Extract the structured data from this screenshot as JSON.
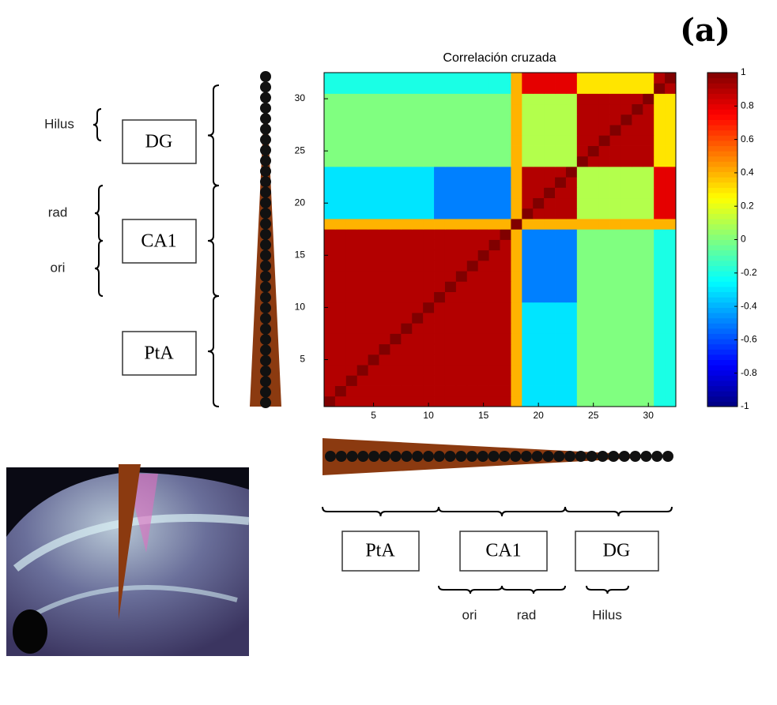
{
  "label": "(a)",
  "chart_data": {
    "type": "heatmap",
    "title": "Correlación cruzada",
    "z": [
      [
        1,
        0.9,
        0.9,
        0.9,
        0.9,
        0.9,
        0.9,
        0.9,
        0.9,
        0.9,
        0.9,
        0.9,
        0.9,
        0.9,
        0.9,
        0.9,
        0.9,
        0.4,
        -0.3,
        -0.3,
        -0.3,
        -0.3,
        -0.3,
        0,
        0,
        0,
        0,
        0,
        0,
        0,
        -0.2,
        -0.2
      ],
      [
        0.9,
        1,
        0.9,
        0.9,
        0.9,
        0.9,
        0.9,
        0.9,
        0.9,
        0.9,
        0.9,
        0.9,
        0.9,
        0.9,
        0.9,
        0.9,
        0.9,
        0.4,
        -0.3,
        -0.3,
        -0.3,
        -0.3,
        -0.3,
        0,
        0,
        0,
        0,
        0,
        0,
        0,
        -0.2,
        -0.2
      ],
      [
        0.9,
        0.9,
        1,
        0.9,
        0.9,
        0.9,
        0.9,
        0.9,
        0.9,
        0.9,
        0.9,
        0.9,
        0.9,
        0.9,
        0.9,
        0.9,
        0.9,
        0.4,
        -0.3,
        -0.3,
        -0.3,
        -0.3,
        -0.3,
        0,
        0,
        0,
        0,
        0,
        0,
        0,
        -0.2,
        -0.2
      ],
      [
        0.9,
        0.9,
        0.9,
        1,
        0.9,
        0.9,
        0.9,
        0.9,
        0.9,
        0.9,
        0.9,
        0.9,
        0.9,
        0.9,
        0.9,
        0.9,
        0.9,
        0.4,
        -0.3,
        -0.3,
        -0.3,
        -0.3,
        -0.3,
        0,
        0,
        0,
        0,
        0,
        0,
        0,
        -0.2,
        -0.2
      ],
      [
        0.9,
        0.9,
        0.9,
        0.9,
        1,
        0.9,
        0.9,
        0.9,
        0.9,
        0.9,
        0.9,
        0.9,
        0.9,
        0.9,
        0.9,
        0.9,
        0.9,
        0.4,
        -0.3,
        -0.3,
        -0.3,
        -0.3,
        -0.3,
        0,
        0,
        0,
        0,
        0,
        0,
        0,
        -0.2,
        -0.2
      ],
      [
        0.9,
        0.9,
        0.9,
        0.9,
        0.9,
        1,
        0.9,
        0.9,
        0.9,
        0.9,
        0.9,
        0.9,
        0.9,
        0.9,
        0.9,
        0.9,
        0.9,
        0.4,
        -0.3,
        -0.3,
        -0.3,
        -0.3,
        -0.3,
        0,
        0,
        0,
        0,
        0,
        0,
        0,
        -0.2,
        -0.2
      ],
      [
        0.9,
        0.9,
        0.9,
        0.9,
        0.9,
        0.9,
        1,
        0.9,
        0.9,
        0.9,
        0.9,
        0.9,
        0.9,
        0.9,
        0.9,
        0.9,
        0.9,
        0.4,
        -0.3,
        -0.3,
        -0.3,
        -0.3,
        -0.3,
        0,
        0,
        0,
        0,
        0,
        0,
        0,
        -0.2,
        -0.2
      ],
      [
        0.9,
        0.9,
        0.9,
        0.9,
        0.9,
        0.9,
        0.9,
        1,
        0.9,
        0.9,
        0.9,
        0.9,
        0.9,
        0.9,
        0.9,
        0.9,
        0.9,
        0.4,
        -0.3,
        -0.3,
        -0.3,
        -0.3,
        -0.3,
        0,
        0,
        0,
        0,
        0,
        0,
        0,
        -0.2,
        -0.2
      ],
      [
        0.9,
        0.9,
        0.9,
        0.9,
        0.9,
        0.9,
        0.9,
        0.9,
        1,
        0.9,
        0.9,
        0.9,
        0.9,
        0.9,
        0.9,
        0.9,
        0.9,
        0.4,
        -0.3,
        -0.3,
        -0.3,
        -0.3,
        -0.3,
        0,
        0,
        0,
        0,
        0,
        0,
        0,
        -0.2,
        -0.2
      ],
      [
        0.9,
        0.9,
        0.9,
        0.9,
        0.9,
        0.9,
        0.9,
        0.9,
        0.9,
        1,
        0.9,
        0.9,
        0.9,
        0.9,
        0.9,
        0.9,
        0.9,
        0.4,
        -0.3,
        -0.3,
        -0.3,
        -0.3,
        -0.3,
        0,
        0,
        0,
        0,
        0,
        0,
        0,
        -0.2,
        -0.2
      ],
      [
        0.9,
        0.9,
        0.9,
        0.9,
        0.9,
        0.9,
        0.9,
        0.9,
        0.9,
        0.9,
        1,
        0.9,
        0.9,
        0.9,
        0.9,
        0.9,
        0.9,
        0.4,
        -0.5,
        -0.5,
        -0.5,
        -0.5,
        -0.5,
        0,
        0,
        0,
        0,
        0,
        0,
        0,
        -0.2,
        -0.2
      ],
      [
        0.9,
        0.9,
        0.9,
        0.9,
        0.9,
        0.9,
        0.9,
        0.9,
        0.9,
        0.9,
        0.9,
        1,
        0.9,
        0.9,
        0.9,
        0.9,
        0.9,
        0.4,
        -0.5,
        -0.5,
        -0.5,
        -0.5,
        -0.5,
        0,
        0,
        0,
        0,
        0,
        0,
        0,
        -0.2,
        -0.2
      ],
      [
        0.9,
        0.9,
        0.9,
        0.9,
        0.9,
        0.9,
        0.9,
        0.9,
        0.9,
        0.9,
        0.9,
        0.9,
        1,
        0.9,
        0.9,
        0.9,
        0.9,
        0.4,
        -0.5,
        -0.5,
        -0.5,
        -0.5,
        -0.5,
        0,
        0,
        0,
        0,
        0,
        0,
        0,
        -0.2,
        -0.2
      ],
      [
        0.9,
        0.9,
        0.9,
        0.9,
        0.9,
        0.9,
        0.9,
        0.9,
        0.9,
        0.9,
        0.9,
        0.9,
        0.9,
        1,
        0.9,
        0.9,
        0.9,
        0.4,
        -0.5,
        -0.5,
        -0.5,
        -0.5,
        -0.5,
        0,
        0,
        0,
        0,
        0,
        0,
        0,
        -0.2,
        -0.2
      ],
      [
        0.9,
        0.9,
        0.9,
        0.9,
        0.9,
        0.9,
        0.9,
        0.9,
        0.9,
        0.9,
        0.9,
        0.9,
        0.9,
        0.9,
        1,
        0.9,
        0.9,
        0.4,
        -0.5,
        -0.5,
        -0.5,
        -0.5,
        -0.5,
        0,
        0,
        0,
        0,
        0,
        0,
        0,
        -0.2,
        -0.2
      ],
      [
        0.9,
        0.9,
        0.9,
        0.9,
        0.9,
        0.9,
        0.9,
        0.9,
        0.9,
        0.9,
        0.9,
        0.9,
        0.9,
        0.9,
        0.9,
        1,
        0.9,
        0.4,
        -0.5,
        -0.5,
        -0.5,
        -0.5,
        -0.5,
        0,
        0,
        0,
        0,
        0,
        0,
        0,
        -0.2,
        -0.2
      ],
      [
        0.9,
        0.9,
        0.9,
        0.9,
        0.9,
        0.9,
        0.9,
        0.9,
        0.9,
        0.9,
        0.9,
        0.9,
        0.9,
        0.9,
        0.9,
        0.9,
        1,
        0.4,
        -0.5,
        -0.5,
        -0.5,
        -0.5,
        -0.5,
        0,
        0,
        0,
        0,
        0,
        0,
        0,
        -0.2,
        -0.2
      ],
      [
        0.4,
        0.4,
        0.4,
        0.4,
        0.4,
        0.4,
        0.4,
        0.4,
        0.4,
        0.4,
        0.4,
        0.4,
        0.4,
        0.4,
        0.4,
        0.4,
        0.4,
        1,
        0.4,
        0.4,
        0.4,
        0.4,
        0.4,
        0.4,
        0.4,
        0.4,
        0.4,
        0.4,
        0.4,
        0.4,
        0.4,
        0.4
      ],
      [
        -0.3,
        -0.3,
        -0.3,
        -0.3,
        -0.3,
        -0.3,
        -0.3,
        -0.3,
        -0.3,
        -0.3,
        -0.5,
        -0.5,
        -0.5,
        -0.5,
        -0.5,
        -0.5,
        -0.5,
        0.4,
        1,
        0.9,
        0.9,
        0.9,
        0.9,
        0.1,
        0.1,
        0.1,
        0.1,
        0.1,
        0.1,
        0.1,
        0.8,
        0.8
      ],
      [
        -0.3,
        -0.3,
        -0.3,
        -0.3,
        -0.3,
        -0.3,
        -0.3,
        -0.3,
        -0.3,
        -0.3,
        -0.5,
        -0.5,
        -0.5,
        -0.5,
        -0.5,
        -0.5,
        -0.5,
        0.4,
        0.9,
        1,
        0.9,
        0.9,
        0.9,
        0.1,
        0.1,
        0.1,
        0.1,
        0.1,
        0.1,
        0.1,
        0.8,
        0.8
      ],
      [
        -0.3,
        -0.3,
        -0.3,
        -0.3,
        -0.3,
        -0.3,
        -0.3,
        -0.3,
        -0.3,
        -0.3,
        -0.5,
        -0.5,
        -0.5,
        -0.5,
        -0.5,
        -0.5,
        -0.5,
        0.4,
        0.9,
        0.9,
        1,
        0.9,
        0.9,
        0.1,
        0.1,
        0.1,
        0.1,
        0.1,
        0.1,
        0.1,
        0.8,
        0.8
      ],
      [
        -0.3,
        -0.3,
        -0.3,
        -0.3,
        -0.3,
        -0.3,
        -0.3,
        -0.3,
        -0.3,
        -0.3,
        -0.5,
        -0.5,
        -0.5,
        -0.5,
        -0.5,
        -0.5,
        -0.5,
        0.4,
        0.9,
        0.9,
        0.9,
        1,
        0.9,
        0.1,
        0.1,
        0.1,
        0.1,
        0.1,
        0.1,
        0.1,
        0.8,
        0.8
      ],
      [
        -0.3,
        -0.3,
        -0.3,
        -0.3,
        -0.3,
        -0.3,
        -0.3,
        -0.3,
        -0.3,
        -0.3,
        -0.5,
        -0.5,
        -0.5,
        -0.5,
        -0.5,
        -0.5,
        -0.5,
        0.4,
        0.9,
        0.9,
        0.9,
        0.9,
        1,
        0.1,
        0.1,
        0.1,
        0.1,
        0.1,
        0.1,
        0.1,
        0.8,
        0.8
      ],
      [
        0,
        0,
        0,
        0,
        0,
        0,
        0,
        0,
        0,
        0,
        0,
        0,
        0,
        0,
        0,
        0,
        0,
        0.4,
        0.1,
        0.1,
        0.1,
        0.1,
        0.1,
        1,
        0.9,
        0.9,
        0.9,
        0.9,
        0.9,
        0.9,
        0.3,
        0.3
      ],
      [
        0,
        0,
        0,
        0,
        0,
        0,
        0,
        0,
        0,
        0,
        0,
        0,
        0,
        0,
        0,
        0,
        0,
        0.4,
        0.1,
        0.1,
        0.1,
        0.1,
        0.1,
        0.9,
        1,
        0.9,
        0.9,
        0.9,
        0.9,
        0.9,
        0.3,
        0.3
      ],
      [
        0,
        0,
        0,
        0,
        0,
        0,
        0,
        0,
        0,
        0,
        0,
        0,
        0,
        0,
        0,
        0,
        0,
        0.4,
        0.1,
        0.1,
        0.1,
        0.1,
        0.1,
        0.9,
        0.9,
        1,
        0.9,
        0.9,
        0.9,
        0.9,
        0.3,
        0.3
      ],
      [
        0,
        0,
        0,
        0,
        0,
        0,
        0,
        0,
        0,
        0,
        0,
        0,
        0,
        0,
        0,
        0,
        0,
        0.4,
        0.1,
        0.1,
        0.1,
        0.1,
        0.1,
        0.9,
        0.9,
        0.9,
        1,
        0.9,
        0.9,
        0.9,
        0.3,
        0.3
      ],
      [
        0,
        0,
        0,
        0,
        0,
        0,
        0,
        0,
        0,
        0,
        0,
        0,
        0,
        0,
        0,
        0,
        0,
        0.4,
        0.1,
        0.1,
        0.1,
        0.1,
        0.1,
        0.9,
        0.9,
        0.9,
        0.9,
        1,
        0.9,
        0.9,
        0.3,
        0.3
      ],
      [
        0,
        0,
        0,
        0,
        0,
        0,
        0,
        0,
        0,
        0,
        0,
        0,
        0,
        0,
        0,
        0,
        0,
        0.4,
        0.1,
        0.1,
        0.1,
        0.1,
        0.1,
        0.9,
        0.9,
        0.9,
        0.9,
        0.9,
        1,
        0.9,
        0.3,
        0.3
      ],
      [
        0,
        0,
        0,
        0,
        0,
        0,
        0,
        0,
        0,
        0,
        0,
        0,
        0,
        0,
        0,
        0,
        0,
        0.4,
        0.1,
        0.1,
        0.1,
        0.1,
        0.1,
        0.9,
        0.9,
        0.9,
        0.9,
        0.9,
        0.9,
        1,
        0.3,
        0.3
      ],
      [
        -0.2,
        -0.2,
        -0.2,
        -0.2,
        -0.2,
        -0.2,
        -0.2,
        -0.2,
        -0.2,
        -0.2,
        -0.2,
        -0.2,
        -0.2,
        -0.2,
        -0.2,
        -0.2,
        -0.2,
        0.4,
        0.8,
        0.8,
        0.8,
        0.8,
        0.8,
        0.3,
        0.3,
        0.3,
        0.3,
        0.3,
        0.3,
        0.3,
        1,
        0.9
      ],
      [
        -0.2,
        -0.2,
        -0.2,
        -0.2,
        -0.2,
        -0.2,
        -0.2,
        -0.2,
        -0.2,
        -0.2,
        -0.2,
        -0.2,
        -0.2,
        -0.2,
        -0.2,
        -0.2,
        -0.2,
        0.4,
        0.8,
        0.8,
        0.8,
        0.8,
        0.8,
        0.3,
        0.3,
        0.3,
        0.3,
        0.3,
        0.3,
        0.3,
        0.9,
        1
      ]
    ],
    "xlim": [
      0.5,
      32.5
    ],
    "ylim": [
      0.5,
      32.5
    ],
    "xticks": [
      5,
      10,
      15,
      20,
      25,
      30
    ],
    "yticks": [
      5,
      10,
      15,
      20,
      25,
      30
    ],
    "colormap": "jet",
    "clim": [
      -1,
      1
    ],
    "cticks": [
      -1,
      -0.8,
      -0.6,
      -0.4,
      -0.2,
      0,
      0.2,
      0.4,
      0.6,
      0.8,
      1
    ]
  },
  "left_labels": {
    "hilus": "Hilus",
    "dg": "DG",
    "rad": "rad",
    "ca1": "CA1",
    "ori": "ori",
    "pta": "PtA"
  },
  "bottom_labels": {
    "pta": "PtA",
    "ca1": "CA1",
    "dg": "DG",
    "ori": "ori",
    "rad": "rad",
    "hilus": "Hilus"
  }
}
